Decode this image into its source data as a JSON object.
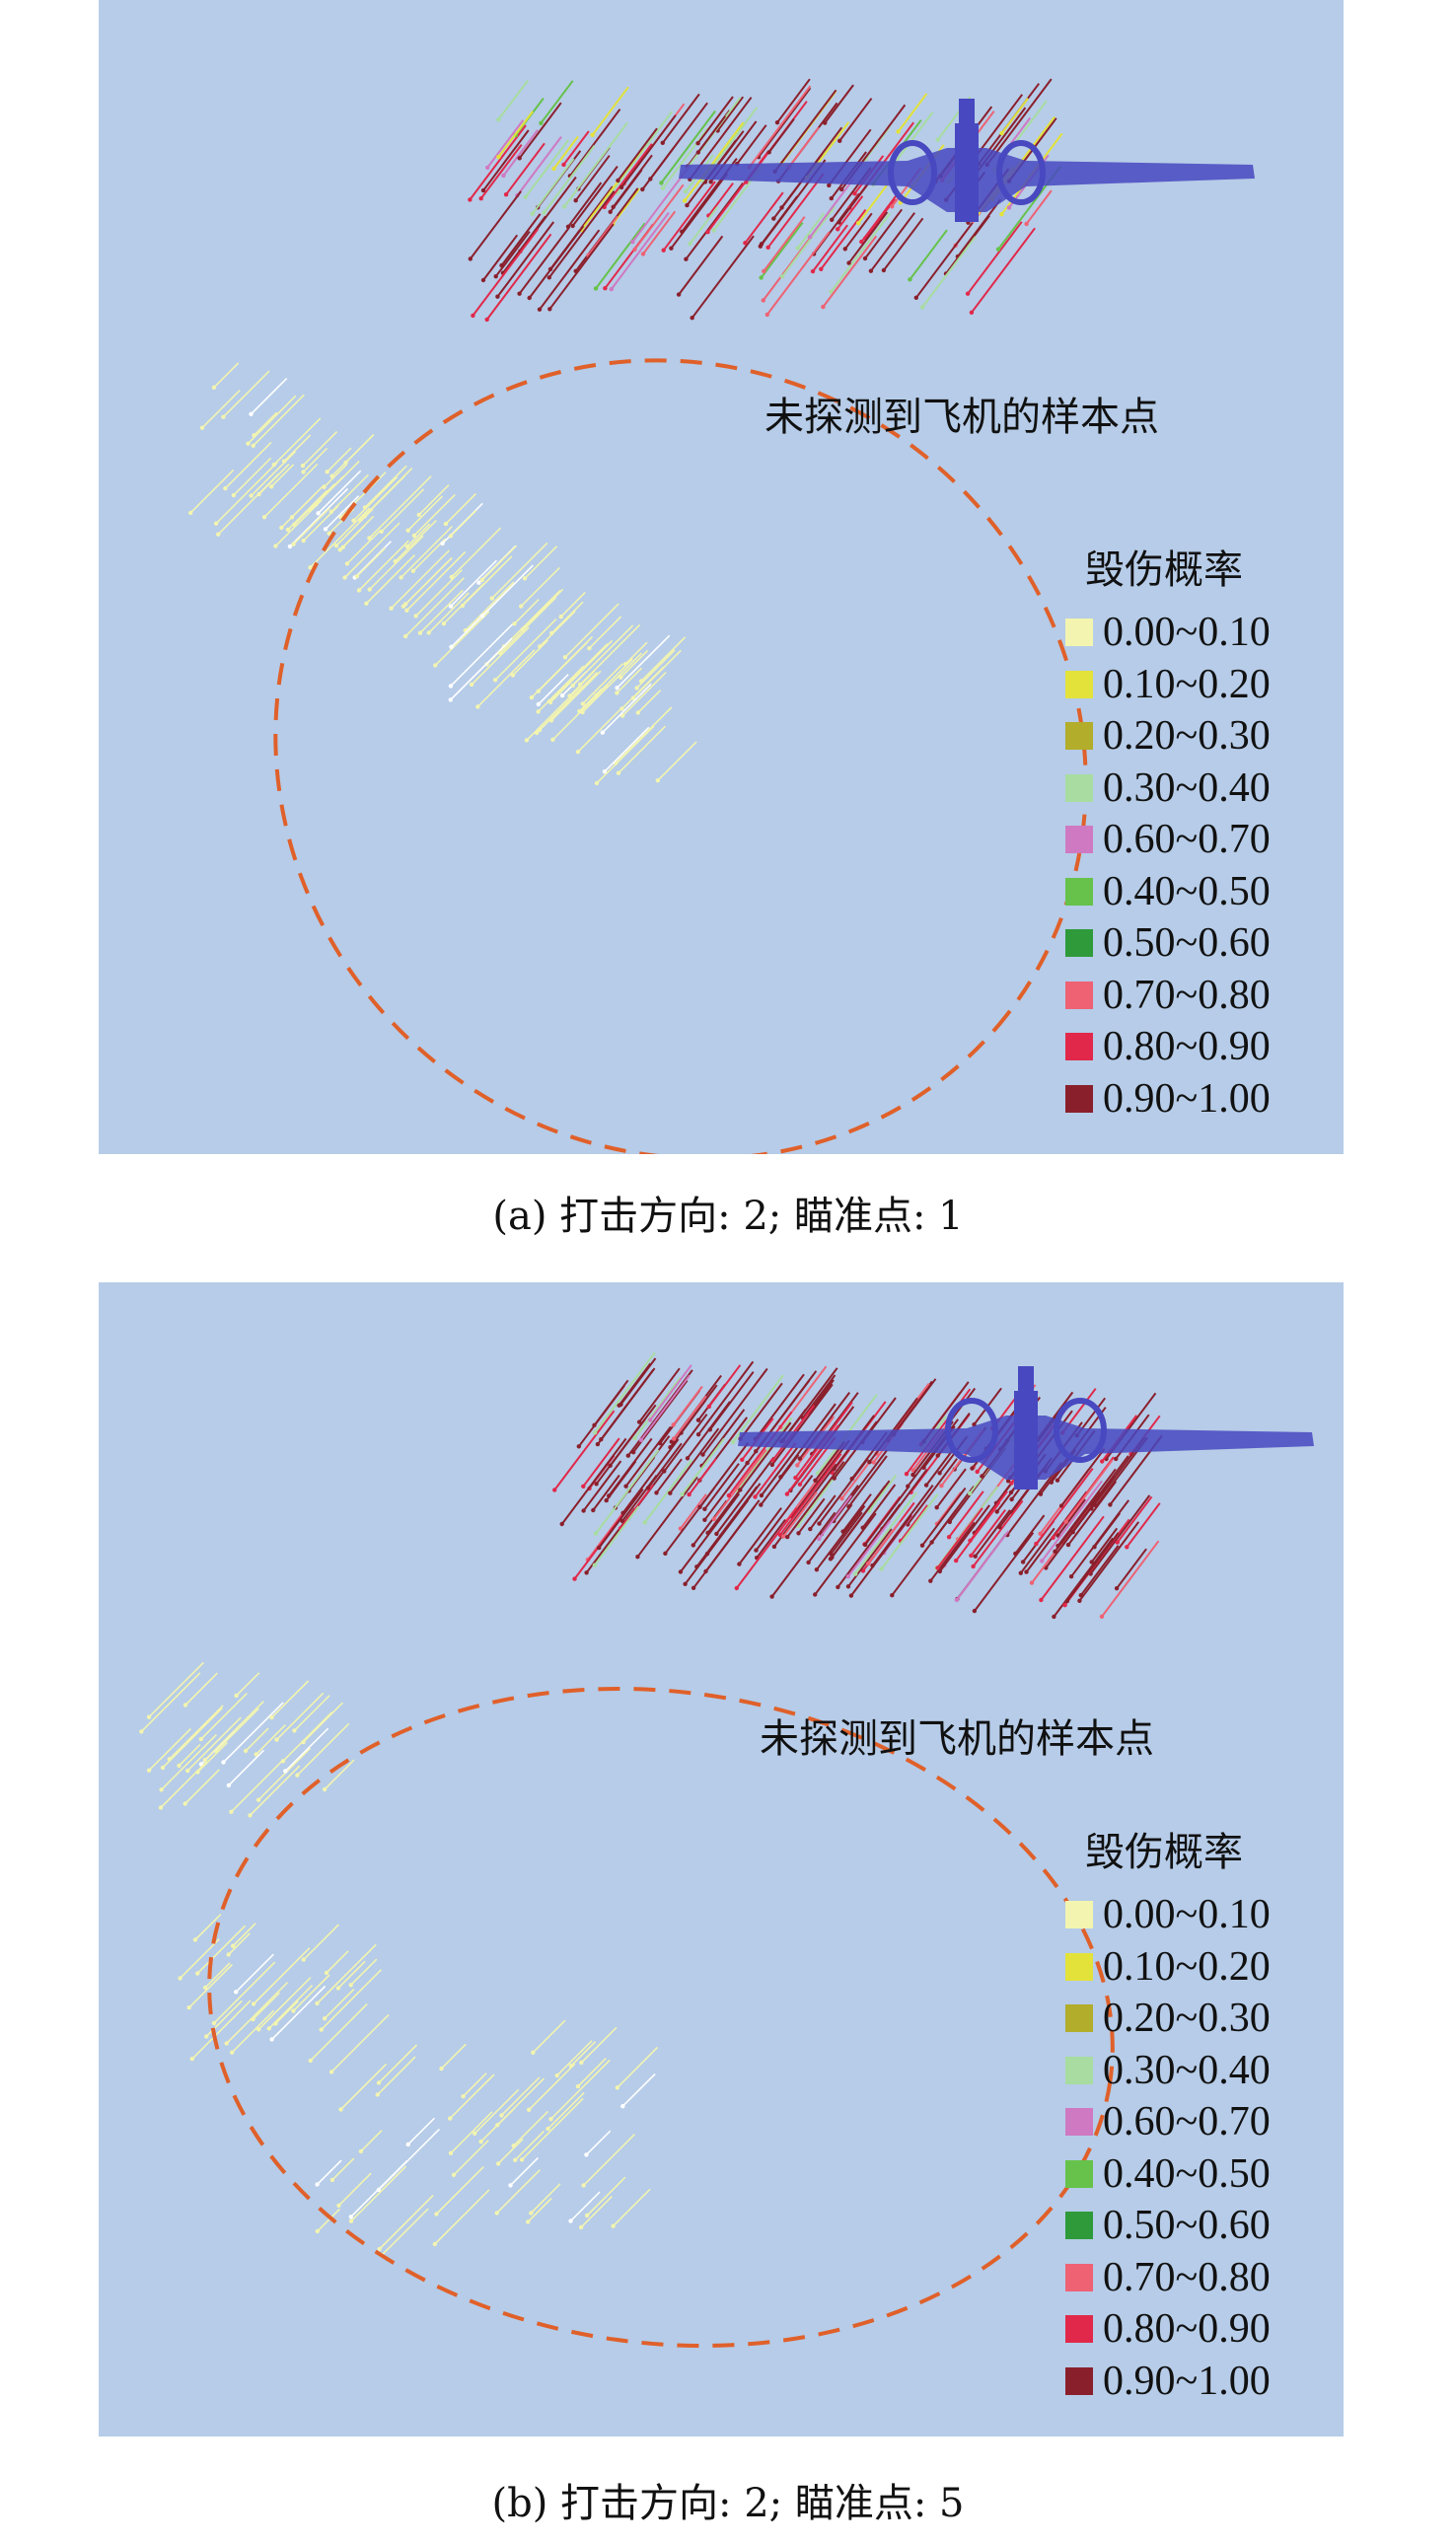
{
  "panels": [
    {
      "annotation": "未探测到飞机的样本点",
      "legend_title": "毁伤概率",
      "caption": "(a) 打击方向: 2; 瞄准点: 1"
    },
    {
      "annotation": "未探测到飞机的样本点",
      "legend_title": "毁伤概率",
      "caption": "(b) 打击方向: 2; 瞄准点: 5"
    }
  ],
  "legend": [
    {
      "label": "0.00~0.10",
      "color": "#f3f4b0"
    },
    {
      "label": "0.10~0.20",
      "color": "#e3e23a"
    },
    {
      "label": "0.20~0.30",
      "color": "#b2ad2a"
    },
    {
      "label": "0.30~0.40",
      "color": "#a8dca0"
    },
    {
      "label": "0.60~0.70",
      "color": "#cf79c2"
    },
    {
      "label": "0.40~0.50",
      "color": "#66c24a"
    },
    {
      "label": "0.50~0.60",
      "color": "#2f9a3a"
    },
    {
      "label": "0.70~0.80",
      "color": "#ee6274"
    },
    {
      "label": "0.80~0.90",
      "color": "#e1284a"
    },
    {
      "label": "0.90~1.00",
      "color": "#8a1f2c"
    }
  ],
  "colors": {
    "panel_background": "#b6cce8",
    "dashed_boundary": "#e0602a",
    "aircraft": "#4848c0"
  }
}
